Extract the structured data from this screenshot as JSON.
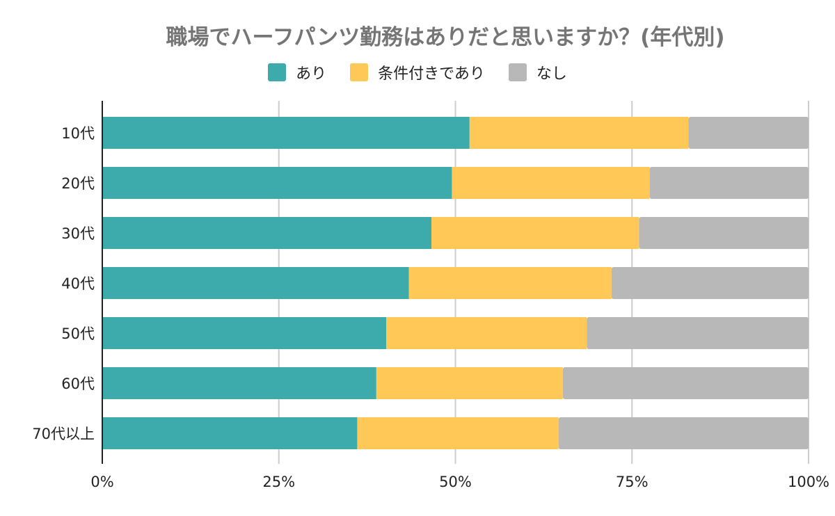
{
  "chart_data": {
    "type": "bar",
    "orientation": "horizontal",
    "stacked": "percent",
    "title": "職場でハーフパンツ勤務はありだと思いますか？(年代別)",
    "categories": [
      "10代",
      "20代",
      "30代",
      "40代",
      "50代",
      "60代",
      "70代以上"
    ],
    "series": [
      {
        "name": "あり",
        "color": "#3dabab",
        "values": [
          52,
          49.5,
          46.6,
          43.4,
          40.2,
          38.8,
          36.1
        ]
      },
      {
        "name": "条件付きであり",
        "color": "#ffc857",
        "values": [
          31,
          28,
          29.4,
          28.7,
          28.4,
          26.4,
          28.5
        ]
      },
      {
        "name": "なし",
        "color": "#b8b8b8",
        "values": [
          17,
          22.5,
          24,
          27.9,
          31.4,
          34.8,
          35.4
        ]
      }
    ],
    "xlim": [
      0,
      100
    ],
    "xticks": [
      "0%",
      "25%",
      "50%",
      "75%",
      "100%"
    ],
    "grid": true,
    "legend_position": "top"
  }
}
